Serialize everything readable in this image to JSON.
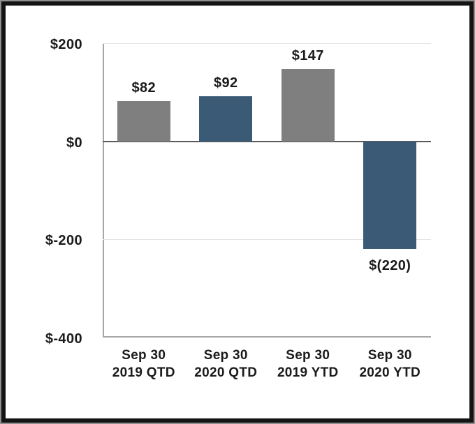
{
  "chart_data": {
    "type": "bar",
    "categories": [
      "Sep 30\n2019 QTD",
      "Sep 30\n2020 QTD",
      "Sep 30\n2019 YTD",
      "Sep 30\n2020 YTD"
    ],
    "values": [
      82,
      92,
      147,
      -220
    ],
    "value_labels": [
      "$82",
      "$92",
      "$147",
      "$(220)"
    ],
    "bar_colors": [
      "#7f7f7f",
      "#3b5a76",
      "#7f7f7f",
      "#3b5a76"
    ],
    "title": "",
    "xlabel": "",
    "ylabel": "",
    "ylim": [
      -400,
      200
    ],
    "yticks": [
      200,
      0,
      -200,
      -400
    ],
    "ytick_labels": [
      "$200",
      "$0",
      "$-200",
      "$-400"
    ],
    "grid": true,
    "legend": false
  },
  "colors": {
    "bar_gray": "#7f7f7f",
    "bar_blue": "#3b5a76",
    "gridline_light": "#e3e3e3",
    "zero_line": "#595959",
    "axis_line": "#a6a6a6",
    "text": "#1b1b1b",
    "frame_border": "#141414",
    "frame_edge": "#8f8f8f",
    "background": "#ffffff"
  }
}
